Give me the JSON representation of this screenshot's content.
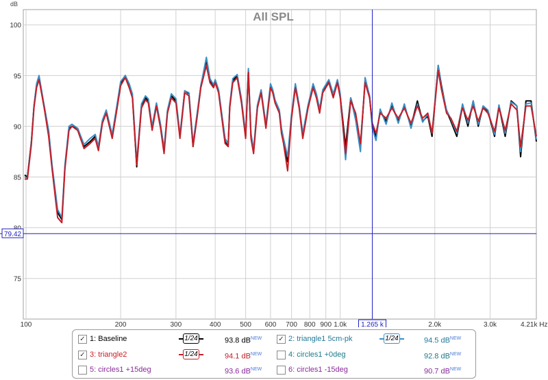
{
  "chart_data": {
    "type": "line",
    "title": "All SPL",
    "ylabel": "dB",
    "xscale": "log",
    "xlim": [
      98,
      4210
    ],
    "ylim": [
      71,
      101.5
    ],
    "yticks": [
      75,
      80,
      85,
      90,
      95,
      100
    ],
    "xticks": [
      100,
      200,
      300,
      400,
      500,
      600,
      700,
      800,
      900,
      1000,
      2000,
      3000
    ],
    "xtick_labels": [
      "100",
      "200",
      "300",
      "400",
      "500",
      "600",
      "700",
      "800",
      "900",
      "1.0k",
      "2.0k",
      "3.0k"
    ],
    "x_end_label": "4.21k Hz",
    "grid": true,
    "cursor": {
      "x_label": "1.265 k",
      "x": 1265,
      "y_label": "79.42",
      "y": 79.42
    },
    "x": [
      99,
      101,
      104,
      106,
      108,
      110,
      114,
      118,
      121,
      126,
      130,
      133,
      137,
      140,
      146,
      153,
      160,
      166,
      170,
      175,
      180,
      188,
      195,
      200,
      207,
      213,
      218,
      225,
      233,
      240,
      245,
      252,
      260,
      268,
      275,
      282,
      290,
      300,
      309,
      320,
      330,
      340,
      350,
      360,
      375,
      385,
      395,
      400,
      410,
      430,
      440,
      445,
      455,
      470,
      485,
      500,
      510,
      520,
      530,
      545,
      560,
      580,
      600,
      610,
      620,
      640,
      650,
      660,
      680,
      700,
      720,
      740,
      760,
      790,
      820,
      840,
      860,
      880,
      920,
      950,
      980,
      1000,
      1040,
      1080,
      1120,
      1160,
      1200,
      1240,
      1265,
      1300,
      1340,
      1400,
      1460,
      1530,
      1600,
      1680,
      1760,
      1830,
      1900,
      1960,
      2050,
      2100,
      2180,
      2250,
      2350,
      2450,
      2550,
      2650,
      2750,
      2850,
      2950,
      3100,
      3200,
      3350,
      3500,
      3650,
      3750,
      3900,
      4050,
      4210
    ],
    "series": [
      {
        "name": "1: Baseline",
        "color": "#000000",
        "values": [
          85.2,
          85.0,
          88.5,
          92.0,
          94.0,
          94.8,
          92.0,
          89.5,
          86.0,
          81.5,
          80.8,
          86.0,
          89.8,
          90.0,
          89.8,
          88.0,
          88.5,
          89.0,
          88.0,
          90.5,
          91.5,
          89.0,
          92.0,
          94.2,
          95.0,
          94.0,
          93.0,
          86.0,
          92.0,
          92.8,
          92.5,
          89.8,
          92.2,
          90.0,
          87.5,
          91.5,
          93.0,
          92.5,
          89.0,
          93.5,
          93.2,
          88.0,
          91.0,
          94.0,
          96.5,
          94.5,
          94.0,
          94.5,
          93.5,
          88.5,
          88.0,
          92.0,
          94.5,
          95.0,
          92.5,
          89.0,
          95.5,
          89.0,
          87.5,
          92.0,
          93.5,
          90.0,
          94.0,
          93.5,
          92.5,
          91.5,
          89.5,
          88.5,
          86.5,
          91.0,
          94.0,
          92.0,
          89.0,
          92.0,
          94.0,
          93.0,
          91.5,
          93.5,
          94.5,
          93.0,
          94.5,
          93.0,
          88.0,
          92.8,
          91.0,
          88.0,
          94.5,
          93.0,
          90.0,
          89.0,
          91.5,
          90.5,
          92.0,
          90.5,
          92.0,
          90.0,
          92.5,
          90.5,
          91.0,
          89.0,
          96.0,
          94.0,
          91.5,
          90.5,
          89.0,
          92.0,
          90.0,
          92.5,
          90.0,
          92.0,
          91.5,
          89.0,
          92.0,
          89.0,
          92.5,
          92.0,
          87.0,
          92.5,
          92.5,
          88.5
        ]
      },
      {
        "name": "2: triangle1 5cm-pk",
        "color": "#3a8fc4",
        "values": [
          85.0,
          84.9,
          88.4,
          92.0,
          94.2,
          95.0,
          92.2,
          89.6,
          86.2,
          81.8,
          81.0,
          86.2,
          90.0,
          90.2,
          89.8,
          88.2,
          88.8,
          89.2,
          88.0,
          90.6,
          91.6,
          89.2,
          92.2,
          94.4,
          95.0,
          94.2,
          93.2,
          86.5,
          92.2,
          93.0,
          92.7,
          90.0,
          92.3,
          90.2,
          87.8,
          91.6,
          93.2,
          92.7,
          89.2,
          93.5,
          93.3,
          88.3,
          91.2,
          94.0,
          96.8,
          94.7,
          94.1,
          94.6,
          93.6,
          88.8,
          88.3,
          92.1,
          94.7,
          95.1,
          92.7,
          89.2,
          95.7,
          89.3,
          87.7,
          92.1,
          93.6,
          90.2,
          94.2,
          93.6,
          92.6,
          91.6,
          89.8,
          88.8,
          87.0,
          91.2,
          94.2,
          92.1,
          89.3,
          92.1,
          94.2,
          93.2,
          91.7,
          93.6,
          94.6,
          93.2,
          94.6,
          93.2,
          86.7,
          92.8,
          90.6,
          87.5,
          94.8,
          93.0,
          89.8,
          88.6,
          91.7,
          90.2,
          92.3,
          90.3,
          92.2,
          89.8,
          92.2,
          90.4,
          91.2,
          89.3,
          96.0,
          93.8,
          91.6,
          90.7,
          89.3,
          92.2,
          90.3,
          92.5,
          90.2,
          92.0,
          91.6,
          89.2,
          92.1,
          89.3,
          92.4,
          92.0,
          87.5,
          92.2,
          92.3,
          88.7
        ]
      },
      {
        "name": "3: triangle2",
        "color": "#c41e28",
        "values": [
          84.8,
          84.8,
          88.2,
          91.8,
          93.8,
          94.6,
          92.0,
          89.0,
          85.8,
          81.0,
          80.5,
          85.8,
          89.6,
          90.0,
          89.6,
          87.8,
          88.3,
          88.8,
          87.6,
          90.3,
          91.3,
          88.8,
          91.8,
          94.0,
          94.8,
          93.8,
          92.8,
          86.2,
          91.8,
          92.6,
          92.3,
          89.6,
          92.0,
          89.8,
          87.3,
          91.3,
          92.8,
          92.3,
          88.8,
          93.3,
          93.0,
          88.0,
          90.8,
          93.8,
          96.0,
          94.3,
          93.8,
          94.3,
          93.3,
          88.3,
          88.0,
          91.8,
          94.3,
          94.8,
          92.3,
          88.8,
          95.3,
          88.8,
          87.3,
          91.8,
          93.3,
          89.8,
          93.8,
          93.3,
          92.3,
          91.3,
          89.3,
          88.3,
          85.6,
          90.8,
          93.8,
          91.8,
          88.8,
          91.8,
          93.8,
          92.8,
          91.3,
          93.3,
          94.3,
          92.8,
          94.3,
          92.8,
          87.3,
          92.5,
          91.3,
          88.3,
          94.3,
          92.8,
          90.3,
          89.3,
          91.3,
          90.8,
          91.8,
          90.8,
          91.8,
          90.3,
          92.0,
          90.8,
          91.3,
          89.3,
          95.5,
          93.6,
          91.3,
          90.8,
          89.5,
          91.8,
          90.6,
          92.0,
          90.5,
          91.8,
          91.3,
          89.5,
          91.8,
          89.6,
          92.2,
          91.6,
          88.0,
          92.0,
          92.0,
          89.0
        ]
      }
    ]
  },
  "legend": {
    "items": [
      {
        "label": "1: Baseline",
        "checked": true,
        "smoothing": "1/24",
        "value": "93.8 dB",
        "badge": "NEW",
        "color": "#000000"
      },
      {
        "label": "2: triangle1 5cm-pk",
        "checked": true,
        "smoothing": "1/24",
        "value": "94.5 dB",
        "badge": "NEW",
        "color": "#3a8fc4"
      },
      {
        "label": "3: triangle2",
        "checked": true,
        "smoothing": "1/24",
        "value": "94.1 dB",
        "badge": "NEW",
        "color": "#c41e28"
      },
      {
        "label": "4: circles1 +0deg",
        "checked": false,
        "smoothing": "",
        "value": "92.8 dB",
        "badge": "NEW",
        "color": "#1a7a8a"
      },
      {
        "label": "5: circles1 +15deg",
        "checked": false,
        "smoothing": "",
        "value": "93.6 dB",
        "badge": "NEW",
        "color": "#8a2a9a"
      },
      {
        "label": "6: circles1 -15deg",
        "checked": false,
        "smoothing": "",
        "value": "90.7 dB",
        "badge": "NEW",
        "color": "#8a2a9a"
      }
    ]
  }
}
